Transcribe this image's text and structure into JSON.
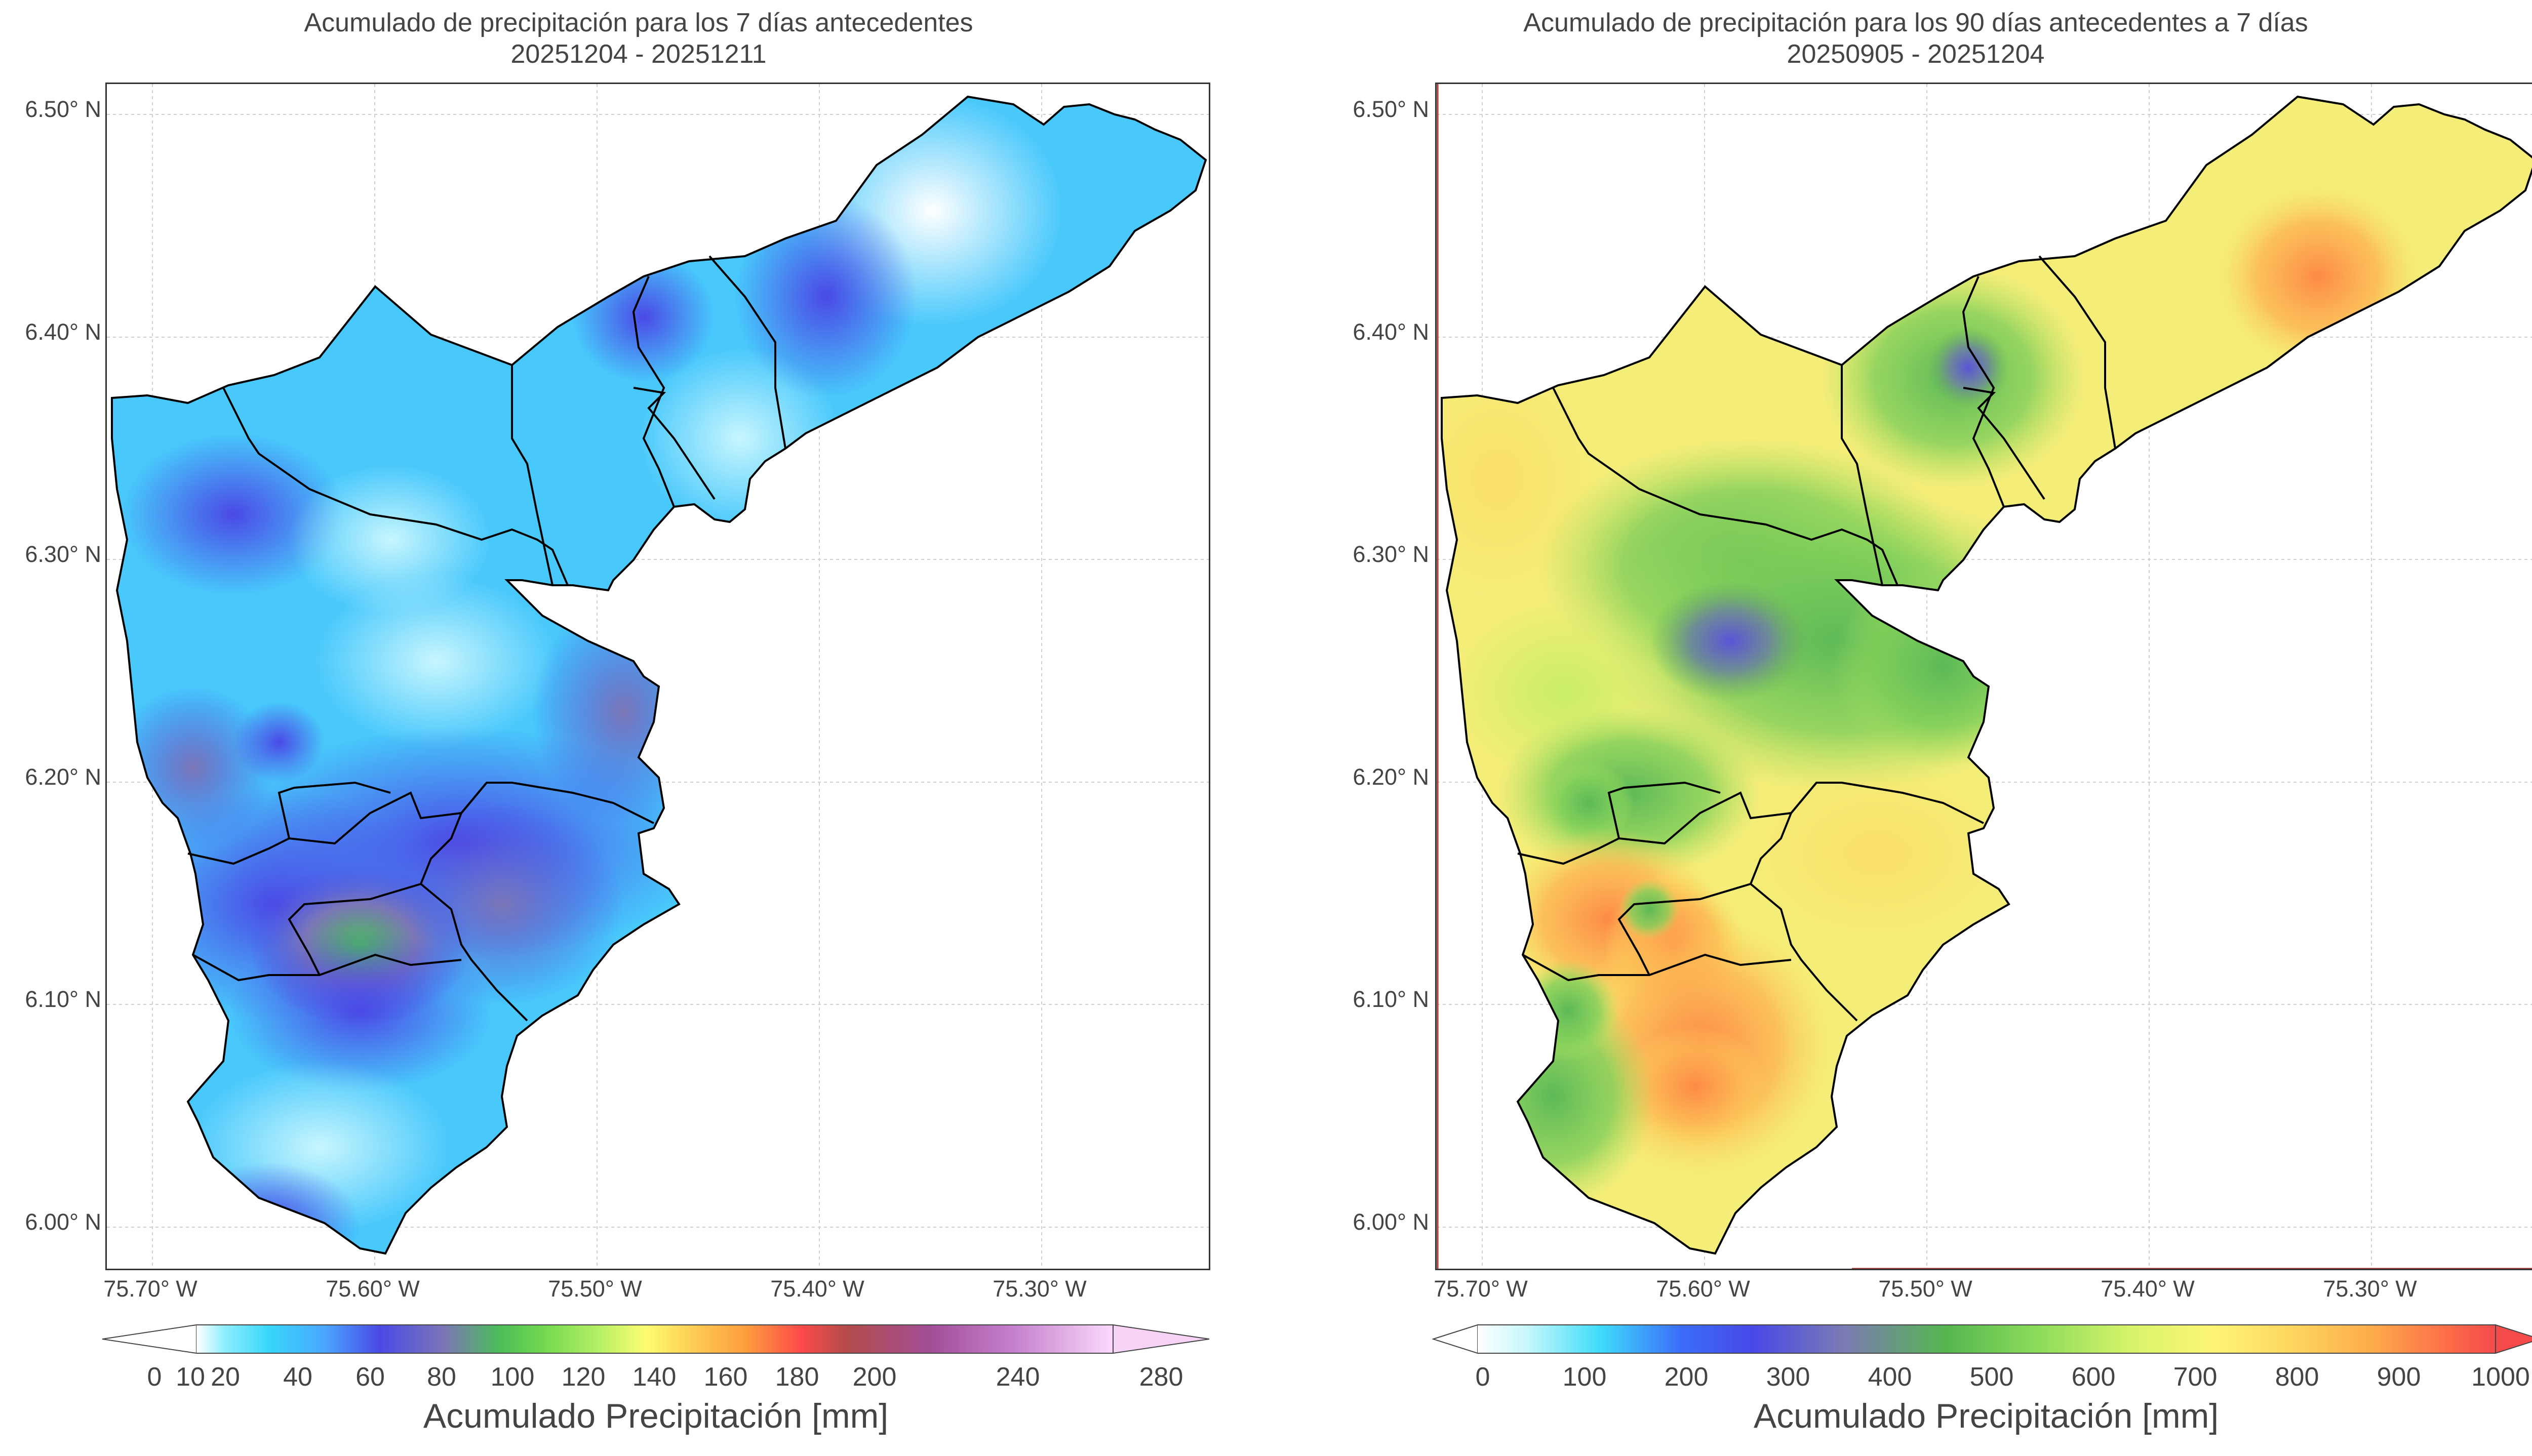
{
  "left": {
    "title_line1": "Acumulado de precipitación para los 7 días antecedentes",
    "title_line2": "20251204 - 20251211",
    "lat_labels": [
      "6.50° N",
      "6.40° N",
      "6.30° N",
      "6.20° N",
      "6.10° N",
      "6.00° N"
    ],
    "lon_labels": [
      "75.70° W",
      "75.60° W",
      "75.50° W",
      "75.40° W",
      "75.30° W"
    ],
    "colorbar_ticks": [
      "0",
      "10",
      "20",
      "40",
      "60",
      "80",
      "100",
      "120",
      "140",
      "160",
      "180",
      "200",
      "240",
      "280"
    ],
    "colorbar_label": "Acumulado Precipitación [mm]",
    "colorbar_colors": [
      "#ffffff",
      "#8feefd",
      "#37d6fb",
      "#4ba6ff",
      "#4a49e6",
      "#7b76b7",
      "#4bbd59",
      "#74d94f",
      "#b7f065",
      "#fdfd72",
      "#fdce55",
      "#fd9c3d",
      "#fd4a4a",
      "#b34b4a",
      "#a24e97",
      "#c47fcc",
      "#fbd9fb"
    ]
  },
  "right": {
    "title_line1": "Acumulado de precipitación para los 90 días antecedentes a 7 días",
    "title_line2": "20250905 - 20251204",
    "lat_labels": [
      "6.50° N",
      "6.40° N",
      "6.30° N",
      "6.20° N",
      "6.10° N",
      "6.00° N"
    ],
    "lon_labels": [
      "75.70° W",
      "75.60° W",
      "75.50° W",
      "75.40° W",
      "75.30° W"
    ],
    "colorbar_ticks": [
      "0",
      "100",
      "200",
      "300",
      "400",
      "500",
      "600",
      "700",
      "800",
      "900",
      "1000"
    ],
    "colorbar_label": "Acumulado Precipitación [mm]",
    "colorbar_colors": [
      "#ffffff",
      "#c4f7fb",
      "#3fdcfa",
      "#3a6df9",
      "#4848e7",
      "#7b7bb4",
      "#55b650",
      "#8bdc5a",
      "#d6f36a",
      "#fdf576",
      "#fdd65e",
      "#fdaa4b",
      "#fd6f48",
      "#f44a4a"
    ]
  }
}
